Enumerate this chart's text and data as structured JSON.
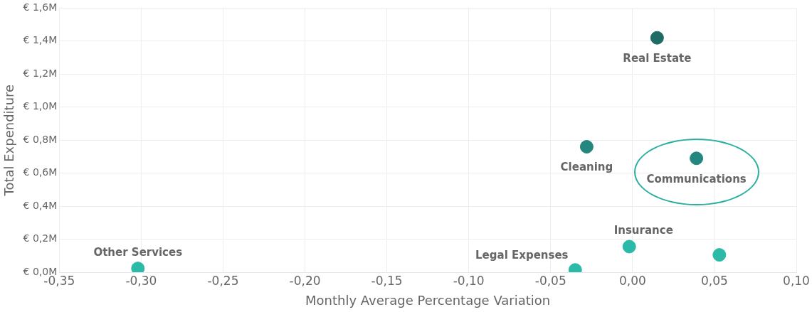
{
  "chart_data": {
    "type": "scatter",
    "xlabel": "Monthly Average Percentage Variation",
    "ylabel": "Total Expenditure",
    "xlim": [
      -0.35,
      0.1
    ],
    "xticks": [
      {
        "value": -0.35,
        "label": "-0,35"
      },
      {
        "value": -0.3,
        "label": "-0,30"
      },
      {
        "value": -0.25,
        "label": "-0,25"
      },
      {
        "value": -0.2,
        "label": "-0,20"
      },
      {
        "value": -0.15,
        "label": "-0,15"
      },
      {
        "value": -0.1,
        "label": "-0,10"
      },
      {
        "value": -0.05,
        "label": "-0,05"
      },
      {
        "value": 0,
        "label": "0,00"
      },
      {
        "value": 0.05,
        "label": "0,05"
      },
      {
        "value": 0.1,
        "label": "0,10"
      }
    ],
    "ylim": [
      0,
      1.6
    ],
    "yticks": [
      {
        "value": 0,
        "label": "€ 0,0M"
      },
      {
        "value": 0.2,
        "label": "€ 0,2M"
      },
      {
        "value": 0.4,
        "label": "€ 0,4M"
      },
      {
        "value": 0.6,
        "label": "€ 0,6M"
      },
      {
        "value": 0.8,
        "label": "€ 0,8M"
      },
      {
        "value": 1.0,
        "label": "€ 1,0M"
      },
      {
        "value": 1.2,
        "label": "€ 1,2M"
      },
      {
        "value": 1.4,
        "label": "€ 1,4M"
      },
      {
        "value": 1.6,
        "label": "€ 1,6M"
      }
    ],
    "grid": true,
    "legend": false,
    "marker": "circle",
    "series": [
      {
        "name": "Real Estate",
        "color": "#1f6b66",
        "x": [
          0.015
        ],
        "values": [
          1.42
        ]
      },
      {
        "name": "Cleaning",
        "color": "#23877f",
        "x": [
          -0.028
        ],
        "values": [
          0.76
        ]
      },
      {
        "name": "Communications",
        "color": "#23877f",
        "x": [
          0.039
        ],
        "values": [
          0.69
        ]
      },
      {
        "name": "Insurance",
        "color": "#2bbaa8",
        "x": [
          -0.002
        ],
        "values": [
          0.155
        ]
      },
      {
        "color": "#2bbaa8",
        "x": [
          0.053
        ],
        "values": [
          0.105
        ]
      },
      {
        "name": "Legal Expenses",
        "color": "#2bbaa8",
        "x": [
          -0.035
        ],
        "values": [
          0.014
        ]
      },
      {
        "name": "Other Services",
        "color": "#2bbaa8",
        "x": [
          -0.302
        ],
        "values": [
          0.023
        ]
      }
    ]
  }
}
